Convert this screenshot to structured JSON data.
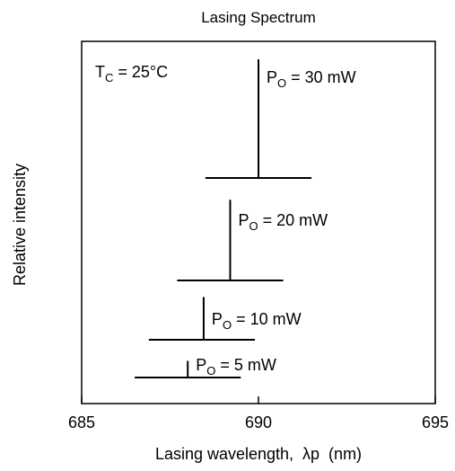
{
  "chart_data": {
    "type": "line",
    "title": "Lasing Spectrum",
    "xlabel": "Lasing wavelength,  λp  (nm)",
    "ylabel": "Relative intensity",
    "xlim": [
      685,
      695
    ],
    "xticks": [
      "685",
      "690",
      "695"
    ],
    "grid": false,
    "annotation": {
      "main": "T",
      "sub": "C",
      "rest": " = 25°C"
    },
    "series": [
      {
        "label_main": "P",
        "label_sub": "O",
        "label_rest": " = 30 mW",
        "peak_wavelength": 690.0,
        "baseline_range": [
          688.5,
          691.5
        ],
        "peak_height": 1.0
      },
      {
        "label_main": "P",
        "label_sub": "O",
        "label_rest": " = 20 mW",
        "peak_wavelength": 689.2,
        "baseline_range": [
          687.7,
          690.7
        ],
        "peak_height": 0.68
      },
      {
        "label_main": "P",
        "label_sub": "O",
        "label_rest": " = 10 mW",
        "peak_wavelength": 688.45,
        "baseline_range": [
          686.9,
          689.9
        ],
        "peak_height": 0.36
      },
      {
        "label_main": "P",
        "label_sub": "O",
        "label_rest": " = 5 mW",
        "peak_wavelength": 688.0,
        "baseline_range": [
          686.5,
          689.5
        ],
        "peak_height": 0.14
      }
    ]
  }
}
